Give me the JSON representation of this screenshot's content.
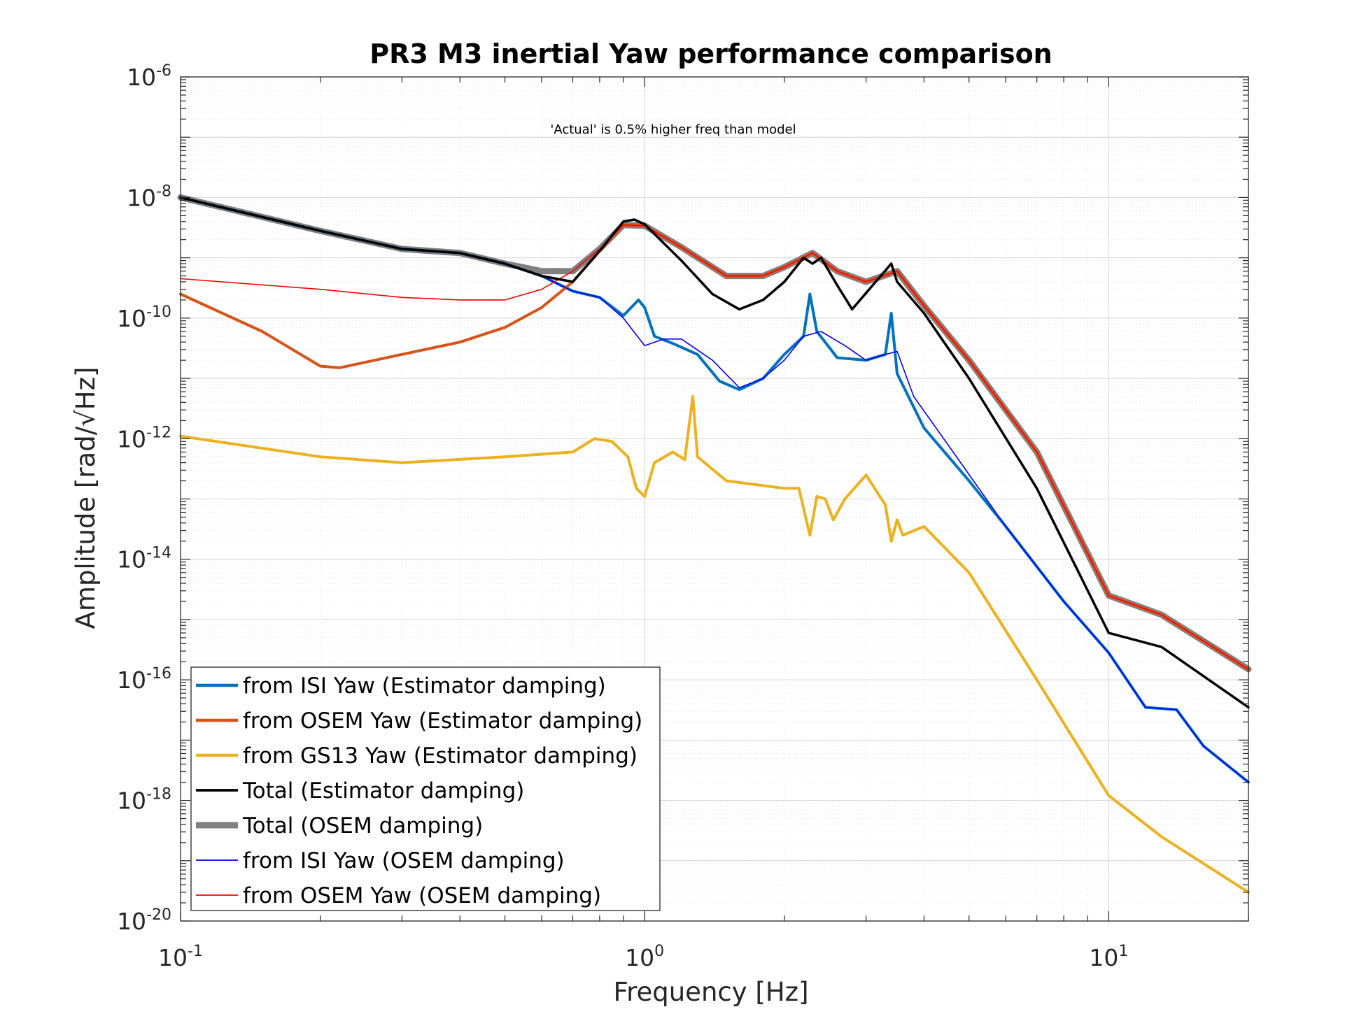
{
  "chart_data": {
    "type": "line",
    "title": "PR3 M3 inertial Yaw performance comparison",
    "xlabel": "Frequency [Hz]",
    "ylabel": "Amplitude [rad/√Hz]",
    "xscale": "log",
    "yscale": "log",
    "xlim": [
      0.1,
      20
    ],
    "ylim": [
      1e-20,
      1e-06
    ],
    "grid": true,
    "legend_position": "bottom-left",
    "annotation": "'Actual' is 0.5% higher freq than model",
    "x_tick_labels": [
      {
        "base": "10",
        "exp": "-1"
      },
      {
        "base": "10",
        "exp": "0"
      },
      {
        "base": "10",
        "exp": "1"
      }
    ],
    "y_tick_labels": [
      {
        "base": "10",
        "exp": "-6"
      },
      {
        "base": "10",
        "exp": "-8"
      },
      {
        "base": "10",
        "exp": "-10"
      },
      {
        "base": "10",
        "exp": "-12"
      },
      {
        "base": "10",
        "exp": "-14"
      },
      {
        "base": "10",
        "exp": "-16"
      },
      {
        "base": "10",
        "exp": "-18"
      },
      {
        "base": "10",
        "exp": "-20"
      }
    ],
    "series": [
      {
        "name": "from ISI Yaw (Estimator damping)",
        "color": "#0072BD",
        "width": 4,
        "points": [
          [
            0.1,
            1e-08
          ],
          [
            0.2,
            2.8e-09
          ],
          [
            0.3,
            1.4e-09
          ],
          [
            0.4,
            1.2e-09
          ],
          [
            0.5,
            8e-10
          ],
          [
            0.6,
            5e-10
          ],
          [
            0.7,
            2.8e-10
          ],
          [
            0.8,
            2.2e-10
          ],
          [
            0.9,
            1.1e-10
          ],
          [
            0.97,
            2e-10
          ],
          [
            1.0,
            1.5e-10
          ],
          [
            1.05,
            5e-11
          ],
          [
            1.15,
            3.8e-11
          ],
          [
            1.3,
            2.5e-11
          ],
          [
            1.45,
            9e-12
          ],
          [
            1.6,
            6.5e-12
          ],
          [
            1.8,
            1e-11
          ],
          [
            2.0,
            2.5e-11
          ],
          [
            2.2,
            5e-11
          ],
          [
            2.27,
            2.5e-10
          ],
          [
            2.35,
            6e-11
          ],
          [
            2.6,
            2.2e-11
          ],
          [
            3.0,
            2e-11
          ],
          [
            3.3,
            2.5e-11
          ],
          [
            3.4,
            1.2e-10
          ],
          [
            3.5,
            1.2e-11
          ],
          [
            4.0,
            1.5e-12
          ],
          [
            5.0,
            2e-13
          ],
          [
            6.0,
            3.5e-14
          ],
          [
            8.0,
            2e-15
          ],
          [
            10.0,
            2.8e-16
          ],
          [
            12.0,
            3.5e-17
          ],
          [
            14.0,
            3.2e-17
          ],
          [
            16.0,
            8e-18
          ],
          [
            20.0,
            2e-18
          ]
        ]
      },
      {
        "name": "from OSEM Yaw (Estimator damping)",
        "color": "#D95319",
        "width": 4,
        "points": [
          [
            0.1,
            2.5e-10
          ],
          [
            0.15,
            6e-11
          ],
          [
            0.2,
            1.6e-11
          ],
          [
            0.22,
            1.5e-11
          ],
          [
            0.3,
            2.5e-11
          ],
          [
            0.4,
            4e-11
          ],
          [
            0.5,
            7e-11
          ],
          [
            0.6,
            1.5e-10
          ],
          [
            0.7,
            4e-10
          ],
          [
            0.8,
            1.3e-09
          ],
          [
            0.9,
            3.5e-09
          ],
          [
            1.0,
            3.4e-09
          ],
          [
            1.2,
            1.5e-09
          ],
          [
            1.5,
            5e-10
          ],
          [
            1.8,
            5e-10
          ],
          [
            2.0,
            7e-10
          ],
          [
            2.3,
            1.2e-09
          ],
          [
            2.6,
            6e-10
          ],
          [
            3.0,
            4e-10
          ],
          [
            3.5,
            6e-10
          ],
          [
            4.0,
            1.6e-10
          ],
          [
            5.0,
            2e-11
          ],
          [
            7.0,
            6e-13
          ],
          [
            10.0,
            2.5e-15
          ],
          [
            13.0,
            1.2e-15
          ],
          [
            20.0,
            1.5e-16
          ]
        ]
      },
      {
        "name": "from GS13 Yaw (Estimator damping)",
        "color": "#EDB120",
        "width": 4,
        "points": [
          [
            0.1,
            1.1e-12
          ],
          [
            0.2,
            5e-13
          ],
          [
            0.3,
            4e-13
          ],
          [
            0.5,
            5e-13
          ],
          [
            0.7,
            6e-13
          ],
          [
            0.78,
            1e-12
          ],
          [
            0.85,
            9e-13
          ],
          [
            0.92,
            5e-13
          ],
          [
            0.96,
            1.5e-13
          ],
          [
            1.0,
            1.1e-13
          ],
          [
            1.05,
            4e-13
          ],
          [
            1.15,
            6e-13
          ],
          [
            1.22,
            4.5e-13
          ],
          [
            1.27,
            5e-12
          ],
          [
            1.3,
            5e-13
          ],
          [
            1.5,
            2e-13
          ],
          [
            2.0,
            1.5e-13
          ],
          [
            2.15,
            1.5e-13
          ],
          [
            2.27,
            2.5e-14
          ],
          [
            2.35,
            1.1e-13
          ],
          [
            2.45,
            1e-13
          ],
          [
            2.55,
            4.5e-14
          ],
          [
            2.7,
            1e-13
          ],
          [
            3.0,
            2.5e-13
          ],
          [
            3.3,
            8e-14
          ],
          [
            3.4,
            2e-14
          ],
          [
            3.5,
            4.5e-14
          ],
          [
            3.6,
            2.5e-14
          ],
          [
            4.0,
            3.5e-14
          ],
          [
            5.0,
            6e-15
          ],
          [
            7.0,
            1e-16
          ],
          [
            10.0,
            1.2e-18
          ],
          [
            13.0,
            2.5e-19
          ],
          [
            20.0,
            3e-20
          ]
        ]
      },
      {
        "name": "Total (Estimator damping)",
        "color": "#000000",
        "width": 3.5,
        "points": [
          [
            0.1,
            1e-08
          ],
          [
            0.2,
            2.8e-09
          ],
          [
            0.3,
            1.4e-09
          ],
          [
            0.4,
            1.2e-09
          ],
          [
            0.5,
            8e-10
          ],
          [
            0.6,
            5e-10
          ],
          [
            0.7,
            4e-10
          ],
          [
            0.8,
            1.3e-09
          ],
          [
            0.9,
            4e-09
          ],
          [
            0.95,
            4.3e-09
          ],
          [
            1.0,
            3.6e-09
          ],
          [
            1.2,
            9e-10
          ],
          [
            1.4,
            2.5e-10
          ],
          [
            1.6,
            1.4e-10
          ],
          [
            1.8,
            2e-10
          ],
          [
            2.0,
            4e-10
          ],
          [
            2.2,
            1e-09
          ],
          [
            2.3,
            8e-10
          ],
          [
            2.4,
            1e-09
          ],
          [
            2.6,
            3.5e-10
          ],
          [
            2.8,
            1.4e-10
          ],
          [
            3.1,
            3.5e-10
          ],
          [
            3.4,
            8e-10
          ],
          [
            3.5,
            4e-10
          ],
          [
            4.0,
            1.2e-10
          ],
          [
            5.0,
            1e-11
          ],
          [
            7.0,
            1.5e-13
          ],
          [
            10.0,
            6e-16
          ],
          [
            13.0,
            3.5e-16
          ],
          [
            20.0,
            3.5e-17
          ]
        ]
      },
      {
        "name": "Total (OSEM damping)",
        "color": "#808080",
        "width": 9,
        "points": [
          [
            0.1,
            1e-08
          ],
          [
            0.2,
            2.8e-09
          ],
          [
            0.3,
            1.4e-09
          ],
          [
            0.4,
            1.2e-09
          ],
          [
            0.5,
            8e-10
          ],
          [
            0.6,
            6e-10
          ],
          [
            0.7,
            6e-10
          ],
          [
            0.8,
            1.4e-09
          ],
          [
            0.9,
            3.5e-09
          ],
          [
            1.0,
            3.4e-09
          ],
          [
            1.2,
            1.5e-09
          ],
          [
            1.5,
            5e-10
          ],
          [
            1.8,
            5e-10
          ],
          [
            2.0,
            7e-10
          ],
          [
            2.3,
            1.2e-09
          ],
          [
            2.6,
            6e-10
          ],
          [
            3.0,
            4e-10
          ],
          [
            3.5,
            6e-10
          ],
          [
            4.0,
            1.6e-10
          ],
          [
            5.0,
            2e-11
          ],
          [
            7.0,
            6e-13
          ],
          [
            10.0,
            2.5e-15
          ],
          [
            13.0,
            1.2e-15
          ],
          [
            20.0,
            1.5e-16
          ]
        ]
      },
      {
        "name": "from ISI Yaw (OSEM damping)",
        "color": "#0000FF",
        "width": 1.6,
        "points": [
          [
            0.1,
            1e-08
          ],
          [
            0.2,
            2.8e-09
          ],
          [
            0.3,
            1.4e-09
          ],
          [
            0.4,
            1.2e-09
          ],
          [
            0.5,
            8e-10
          ],
          [
            0.6,
            5e-10
          ],
          [
            0.7,
            2.8e-10
          ],
          [
            0.8,
            2.2e-10
          ],
          [
            0.9,
            1e-10
          ],
          [
            1.0,
            3.5e-11
          ],
          [
            1.1,
            4.5e-11
          ],
          [
            1.2,
            4.5e-11
          ],
          [
            1.4,
            2e-11
          ],
          [
            1.6,
            7e-12
          ],
          [
            1.8,
            1e-11
          ],
          [
            2.0,
            2e-11
          ],
          [
            2.2,
            5e-11
          ],
          [
            2.4,
            6e-11
          ],
          [
            2.7,
            3.5e-11
          ],
          [
            3.0,
            2e-11
          ],
          [
            3.3,
            2.5e-11
          ],
          [
            3.5,
            2.8e-11
          ],
          [
            3.8,
            5e-12
          ],
          [
            4.5,
            8e-13
          ],
          [
            6.0,
            3.5e-14
          ],
          [
            8.0,
            2e-15
          ],
          [
            10.0,
            2.8e-16
          ],
          [
            12.0,
            3.5e-17
          ],
          [
            14.0,
            3.2e-17
          ],
          [
            16.0,
            8e-18
          ],
          [
            20.0,
            2e-18
          ]
        ]
      },
      {
        "name": "from OSEM Yaw (OSEM damping)",
        "color": "#FF0000",
        "width": 1.6,
        "points": [
          [
            0.1,
            4.5e-10
          ],
          [
            0.2,
            3e-10
          ],
          [
            0.3,
            2.2e-10
          ],
          [
            0.4,
            2e-10
          ],
          [
            0.5,
            2e-10
          ],
          [
            0.6,
            3e-10
          ],
          [
            0.7,
            6e-10
          ],
          [
            0.8,
            1.4e-09
          ],
          [
            0.9,
            3.5e-09
          ],
          [
            1.0,
            3.4e-09
          ],
          [
            1.2,
            1.5e-09
          ],
          [
            1.5,
            5e-10
          ],
          [
            1.8,
            5e-10
          ],
          [
            2.0,
            7e-10
          ],
          [
            2.3,
            1.2e-09
          ],
          [
            2.6,
            6e-10
          ],
          [
            3.0,
            4e-10
          ],
          [
            3.5,
            6e-10
          ],
          [
            4.0,
            1.6e-10
          ],
          [
            5.0,
            2e-11
          ],
          [
            7.0,
            6e-13
          ],
          [
            10.0,
            2.5e-15
          ],
          [
            13.0,
            1.2e-15
          ],
          [
            20.0,
            1.5e-16
          ]
        ]
      }
    ]
  }
}
